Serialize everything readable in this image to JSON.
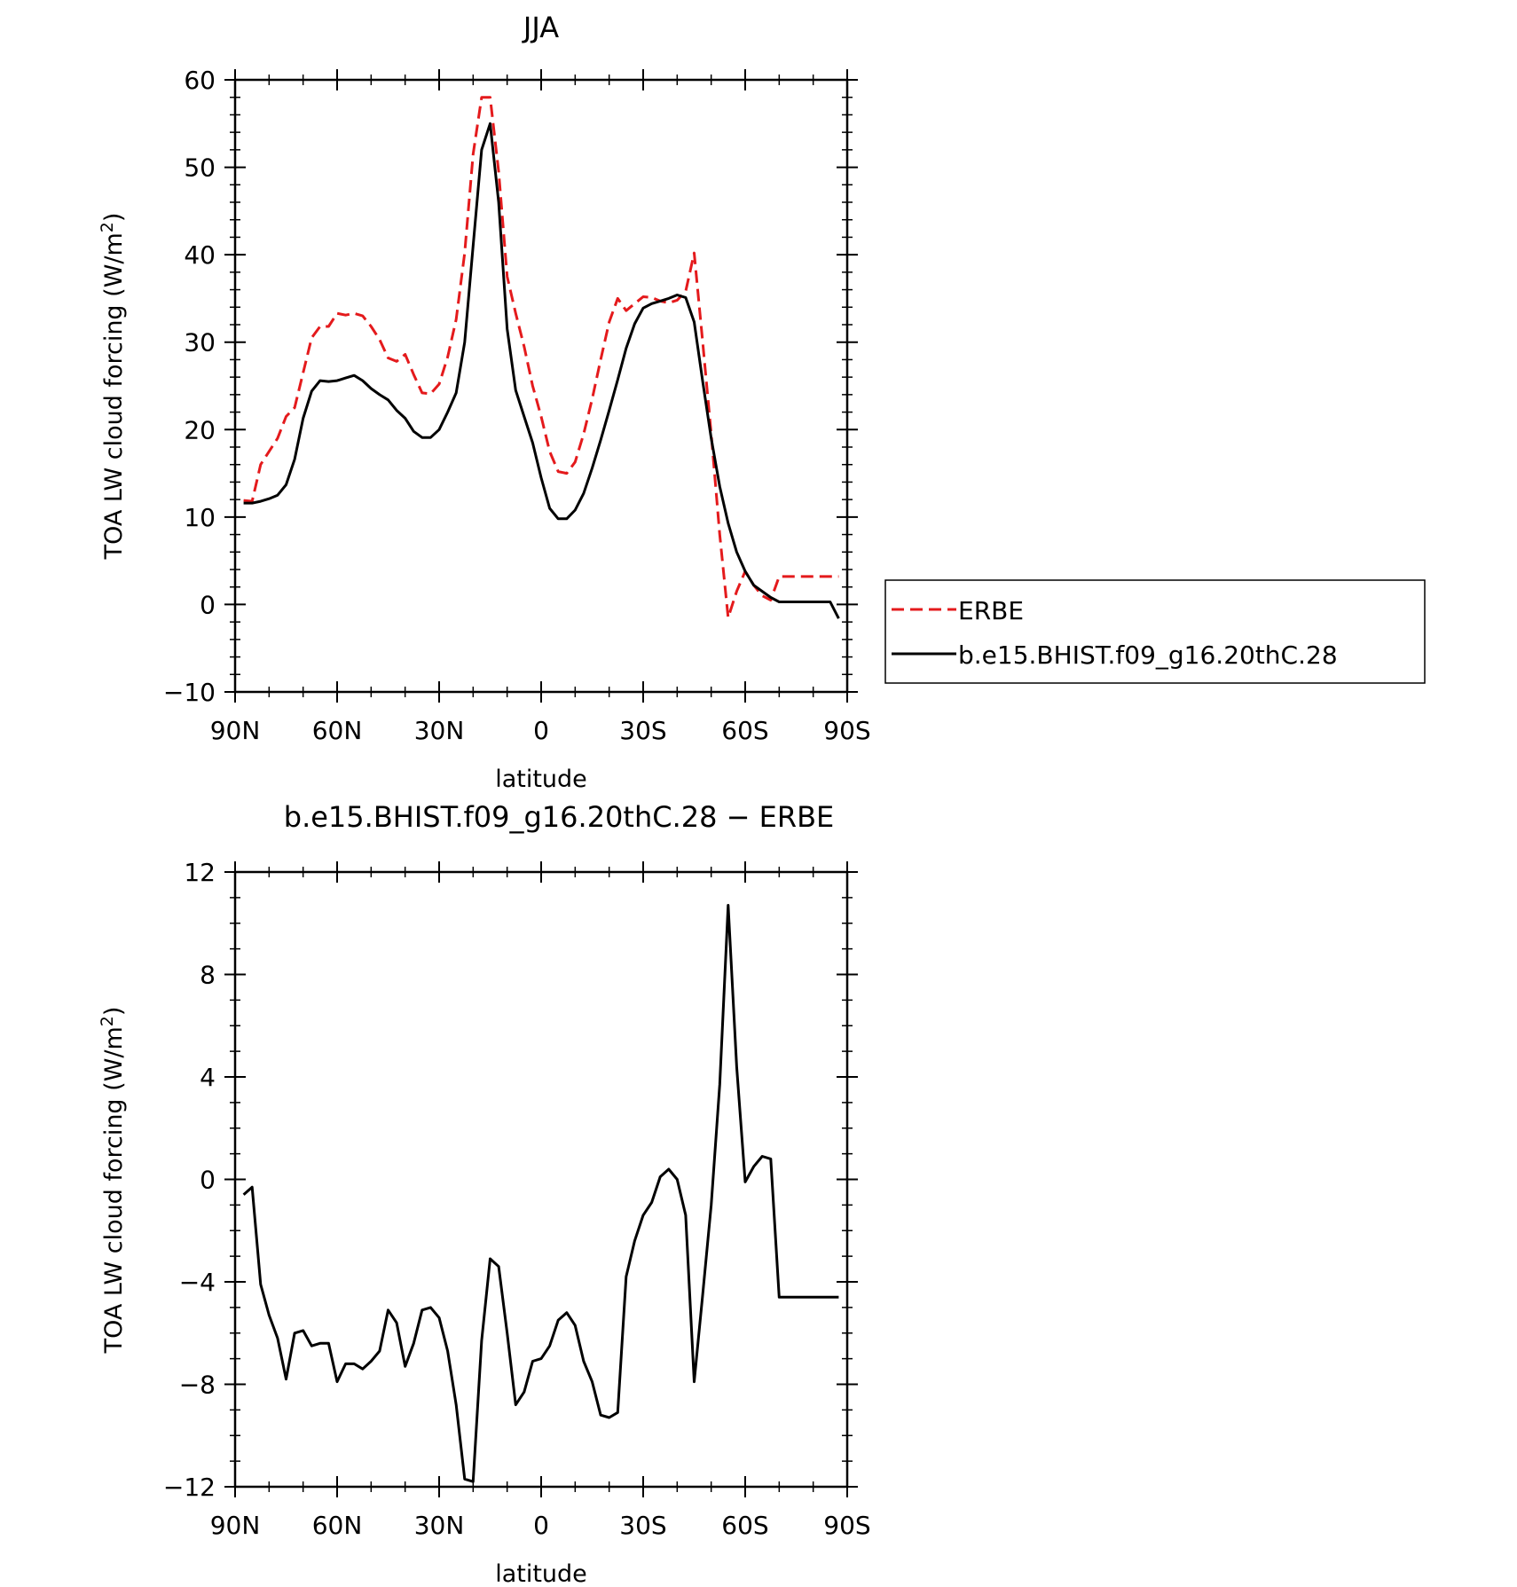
{
  "chart_data": [
    {
      "type": "line",
      "title": "JJA",
      "xlabel": "latitude",
      "ylabel": "TOA LW cloud forcing (W/m²)",
      "ylabel_main": "TOA LW cloud forcing (W/m",
      "ylabel_sup": "2",
      "ylabel_end": ")",
      "xlim": [
        90,
        -90
      ],
      "ylim": [
        -10,
        60
      ],
      "xticks": [
        90,
        60,
        30,
        0,
        -30,
        -60,
        -90
      ],
      "xticklabels": [
        "90N",
        "60N",
        "30N",
        "0",
        "30S",
        "60S",
        "90S"
      ],
      "yticks": [
        -10,
        0,
        10,
        20,
        30,
        40,
        50,
        60
      ],
      "yticklabels": [
        "−10",
        "0",
        "10",
        "20",
        "30",
        "40",
        "50",
        "60"
      ],
      "legend": {
        "placement": "right"
      },
      "series": [
        {
          "name": "ERBE",
          "color": "#e41a1c",
          "style": "dashed",
          "x": [
            87.5,
            85,
            82.5,
            80,
            77.5,
            75,
            72.5,
            70,
            67.5,
            65,
            62.5,
            60,
            57.5,
            55,
            52.5,
            50,
            47.5,
            45,
            42.5,
            40,
            37.5,
            35,
            32.5,
            30,
            27.5,
            25,
            22.5,
            20,
            17.5,
            15,
            12.5,
            10,
            7.5,
            5,
            2.5,
            0,
            -2.5,
            -5,
            -7.5,
            -10,
            -12.5,
            -15,
            -17.5,
            -20,
            -22.5,
            -25,
            -27.5,
            -30,
            -32.5,
            -35,
            -37.5,
            -40,
            -42.5,
            -45,
            -47.5,
            -50,
            -52.5,
            -55,
            -57.5,
            -60,
            -62.5,
            -65,
            -67.5,
            -70,
            -72.5,
            -75,
            -77.5,
            -80,
            -82.5,
            -85,
            -87.5
          ],
          "y": [
            11.9,
            11.8,
            16,
            17.5,
            19,
            21.5,
            22.5,
            26.5,
            30.5,
            31.8,
            31.8,
            33.3,
            33.1,
            33.3,
            33,
            31.8,
            30.3,
            28.2,
            27.8,
            28.6,
            26.3,
            24.2,
            24.1,
            25.2,
            28.3,
            32.6,
            40.2,
            51.5,
            58,
            58,
            49.5,
            37.5,
            33.3,
            29.5,
            25,
            21.5,
            17.5,
            15.2,
            15,
            16.3,
            19.5,
            23.5,
            28,
            32.3,
            35,
            33.6,
            34.4,
            35.2,
            35.1,
            34.7,
            34.5,
            34.8,
            35.8,
            40.2,
            30,
            19.5,
            8,
            -1.5,
            1.5,
            3.8,
            2.2,
            1,
            0.5,
            3.2,
            3.2,
            3.2,
            3.2,
            3.2,
            3.2,
            3.2,
            3.2
          ]
        },
        {
          "name": "b.e15.BHIST.f09_g16.20thC.28",
          "color": "#000000",
          "style": "solid",
          "x": [
            87.5,
            85,
            82.5,
            80,
            77.5,
            75,
            72.5,
            70,
            67.5,
            65,
            62.5,
            60,
            57.5,
            55,
            52.5,
            50,
            47.5,
            45,
            42.5,
            40,
            37.5,
            35,
            32.5,
            30,
            27.5,
            25,
            22.5,
            20,
            17.5,
            15,
            12.5,
            10,
            7.5,
            5,
            2.5,
            0,
            -2.5,
            -5,
            -7.5,
            -10,
            -12.5,
            -15,
            -17.5,
            -20,
            -22.5,
            -25,
            -27.5,
            -30,
            -32.5,
            -35,
            -37.5,
            -40,
            -42.5,
            -45,
            -47.5,
            -50,
            -52.5,
            -55,
            -57.5,
            -60,
            -62.5,
            -65,
            -67.5,
            -70,
            -72.5,
            -75,
            -77.5,
            -80,
            -82.5,
            -85,
            -87.5
          ],
          "y": [
            11.6,
            11.6,
            11.8,
            12.1,
            12.5,
            13.7,
            16.6,
            21.3,
            24.4,
            25.6,
            25.5,
            25.6,
            25.9,
            26.2,
            25.6,
            24.7,
            24,
            23.4,
            22.2,
            21.3,
            19.8,
            19.1,
            19.1,
            20,
            22,
            24.2,
            30,
            41,
            52,
            55,
            46,
            31.5,
            24.5,
            21.5,
            18.5,
            14.5,
            11,
            9.8,
            9.8,
            10.8,
            12.7,
            15.6,
            18.8,
            22.2,
            25.7,
            29.3,
            32.1,
            33.9,
            34.4,
            34.7,
            35,
            35.4,
            35.1,
            32.3,
            25.5,
            19,
            13.5,
            9.3,
            6,
            3.8,
            2.2,
            1.5,
            0.8,
            0.3,
            0.3,
            0.3,
            0.3,
            0.3,
            0.3,
            0.3,
            -1.6
          ]
        }
      ]
    },
    {
      "type": "line",
      "title": "b.e15.BHIST.f09_g16.20thC.28 − ERBE",
      "xlabel": "latitude",
      "ylabel": "TOA LW cloud forcing (W/m²)",
      "ylabel_main": "TOA LW cloud forcing (W/m",
      "ylabel_sup": "2",
      "ylabel_end": ")",
      "xlim": [
        90,
        -90
      ],
      "ylim": [
        -12,
        12
      ],
      "xticks": [
        90,
        60,
        30,
        0,
        -30,
        -60,
        -90
      ],
      "xticklabels": [
        "90N",
        "60N",
        "30N",
        "0",
        "30S",
        "60S",
        "90S"
      ],
      "yticks": [
        -12,
        -8,
        -4,
        0,
        4,
        8,
        12
      ],
      "yticklabels": [
        "−12",
        "−8",
        "−4",
        "0",
        "4",
        "8",
        "12"
      ],
      "series": [
        {
          "color": "#000000",
          "style": "solid",
          "x": [
            87.5,
            85,
            82.5,
            80,
            77.5,
            75,
            72.5,
            70,
            67.5,
            65,
            62.5,
            60,
            57.5,
            55,
            52.5,
            50,
            47.5,
            45,
            42.5,
            40,
            37.5,
            35,
            32.5,
            30,
            27.5,
            25,
            22.5,
            20,
            17.5,
            15,
            12.5,
            10,
            7.5,
            5,
            2.5,
            0,
            -2.5,
            -5,
            -7.5,
            -10,
            -12.5,
            -15,
            -17.5,
            -20,
            -22.5,
            -25,
            -27.5,
            -30,
            -32.5,
            -35,
            -37.5,
            -40,
            -42.5,
            -45,
            -47.5,
            -50,
            -52.5,
            -55,
            -57.5,
            -60,
            -62.5,
            -65,
            -67.5,
            -70,
            -72.5,
            -75,
            -77.5,
            -80,
            -82.5,
            -85,
            -87.5
          ],
          "y": [
            -0.6,
            -0.3,
            -4.1,
            -5.3,
            -6.2,
            -7.8,
            -6,
            -5.9,
            -6.5,
            -6.4,
            -6.4,
            -7.9,
            -7.2,
            -7.2,
            -7.4,
            -7.1,
            -6.7,
            -5.1,
            -5.6,
            -7.3,
            -6.4,
            -5.1,
            -5,
            -5.4,
            -6.7,
            -8.8,
            -11.7,
            -11.8,
            -6.3,
            -3.1,
            -3.4,
            -6,
            -8.8,
            -8.3,
            -7.1,
            -7,
            -6.5,
            -5.5,
            -5.2,
            -5.7,
            -7.1,
            -7.9,
            -9.2,
            -9.3,
            -9.1,
            -3.8,
            -2.4,
            -1.4,
            -0.9,
            0.1,
            0.4,
            0,
            -1.4,
            -7.9,
            -4.5,
            -1,
            3.7,
            10.7,
            4.4,
            -0.1,
            0.5,
            0.9,
            0.8,
            -4.6,
            -4.6,
            -4.6,
            -4.6,
            -4.6,
            -4.6,
            -4.6,
            -4.6
          ]
        }
      ]
    }
  ]
}
